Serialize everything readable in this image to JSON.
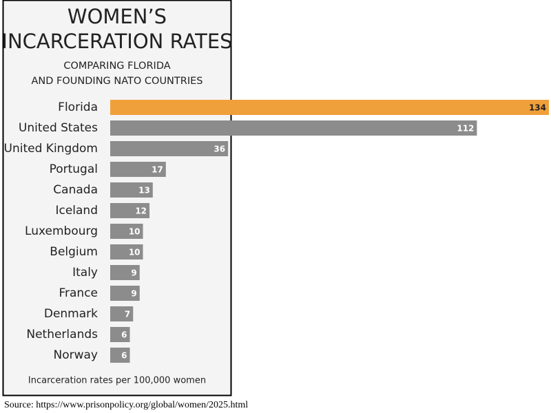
{
  "chart_data": {
    "type": "bar",
    "orientation": "horizontal",
    "title": [
      "WOMEN’S",
      "INCARCERATION RATES"
    ],
    "subtitle": [
      "COMPARING FLORIDA",
      "AND FOUNDING NATO COUNTRIES"
    ],
    "categories": [
      "Florida",
      "United States",
      "United Kingdom",
      "Portugal",
      "Canada",
      "Iceland",
      "Luxembourg",
      "Belgium",
      "Italy",
      "France",
      "Denmark",
      "Netherlands",
      "Norway"
    ],
    "values": [
      134,
      112,
      36,
      17,
      13,
      12,
      10,
      10,
      9,
      9,
      7,
      6,
      6
    ],
    "colors": [
      "#f0a03a",
      "#8c8c8c",
      "#8c8c8c",
      "#8c8c8c",
      "#8c8c8c",
      "#8c8c8c",
      "#8c8c8c",
      "#8c8c8c",
      "#8c8c8c",
      "#8c8c8c",
      "#8c8c8c",
      "#8c8c8c",
      "#8c8c8c"
    ],
    "note": "Incarceration rates per 100,000 women",
    "source": "Source: https://www.prisonpolicy.org/global/women/2025.html"
  }
}
